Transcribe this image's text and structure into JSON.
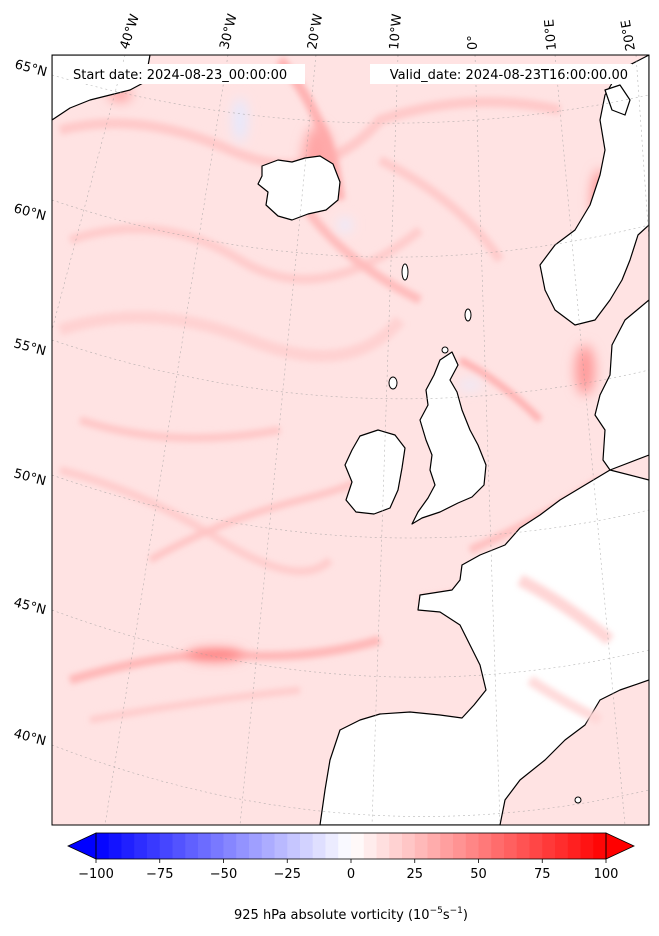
{
  "header": {
    "start_date": "Start date: 2024-08-23_00:00:00",
    "valid_date": "Valid_date: 2024-08-23T16:00:00.00"
  },
  "map": {
    "projection": "lambert-conic",
    "field": "925 hPa absolute vorticity",
    "colormap": "bwr",
    "land_fill": "#ffffff",
    "coast_color": "#000000",
    "lon_labels": [
      "40°W",
      "30°W",
      "20°W",
      "10°W",
      "0°",
      "10°E",
      "20°E"
    ],
    "lat_labels": [
      "65°N",
      "60°N",
      "55°N",
      "50°N",
      "45°N",
      "40°N"
    ],
    "regions": [
      "Iceland",
      "Ireland",
      "Great Britain",
      "Norway",
      "Denmark",
      "France",
      "Iberian Peninsula"
    ]
  },
  "colorbar": {
    "min": -100,
    "max": 100,
    "extend": "both",
    "ticks": [
      "−100",
      "−75",
      "−50",
      "−25",
      "0",
      "25",
      "50",
      "75",
      "100"
    ],
    "tick_values": [
      -100,
      -75,
      -50,
      -25,
      0,
      25,
      50,
      75,
      100
    ],
    "label_main": "925 hPa absolute vorticity (10",
    "label_exp1": "−5",
    "label_mid": "s",
    "label_exp2": "−1",
    "label_end": ")",
    "neg_color": "#0000ff",
    "pos_color": "#ff0000"
  }
}
